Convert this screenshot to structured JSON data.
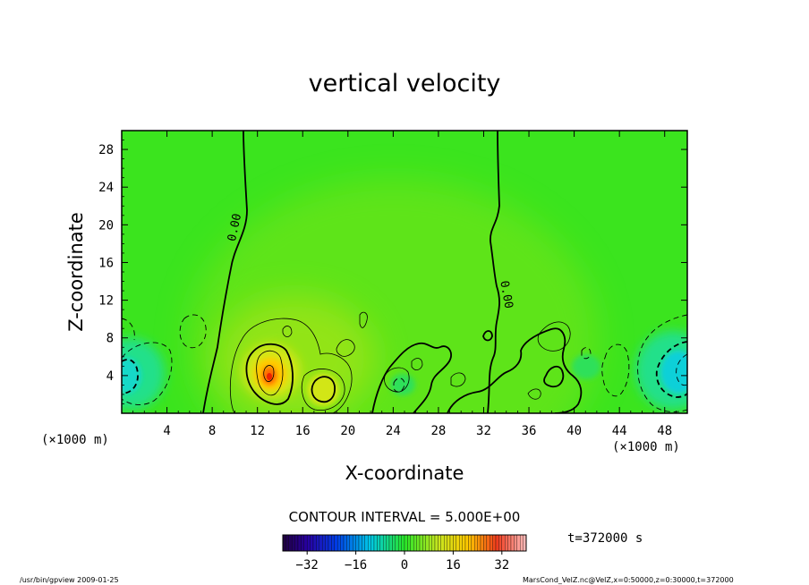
{
  "chart_data": {
    "type": "heatmap",
    "title": "vertical velocity",
    "xlabel": "X-coordinate",
    "ylabel": "Z-coordinate",
    "x_unit": "(×1000 m)",
    "z_unit": "(×1000 m)",
    "xlim": [
      0,
      50
    ],
    "ylim": [
      0,
      30
    ],
    "x_ticks": [
      4,
      8,
      12,
      16,
      20,
      24,
      28,
      32,
      36,
      40,
      44,
      48
    ],
    "y_ticks": [
      4,
      8,
      12,
      16,
      20,
      24,
      28
    ],
    "contour_interval_text": "CONTOUR INTERVAL = 5.000E+00",
    "zero_contour_label": "0.00",
    "time_label": "t=372000 s",
    "colorbar": {
      "min": -40,
      "max": 40,
      "ticks": [
        -32,
        -16,
        0,
        16,
        32
      ]
    },
    "field_features": [
      {
        "kind": "max",
        "x": 13.2,
        "z": 4.0,
        "value": 32
      },
      {
        "kind": "max",
        "x": 17.7,
        "z": 2.4,
        "value": 14
      },
      {
        "kind": "min",
        "x": 0.5,
        "z": 3.8,
        "value": -14
      },
      {
        "kind": "min",
        "x": 49.2,
        "z": 4.5,
        "value": -20
      }
    ]
  },
  "footer": {
    "left": "/usr/bin/gpview  2009-01-25",
    "right": "MarsCond_VelZ.nc@VelZ,x=0:50000,z=0:30000,t=372000"
  },
  "colors": {
    "background_field": "#33ee22",
    "positive_max": "#ff2200",
    "negative_min": "#00ccee"
  }
}
